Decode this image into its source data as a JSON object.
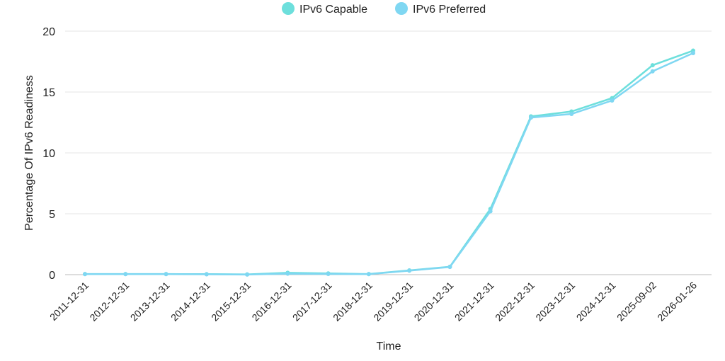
{
  "chart_data": {
    "type": "line",
    "title": "",
    "xlabel": "Time",
    "ylabel": "Percentage Of IPv6 Readiness",
    "categories": [
      "2011-12-31",
      "2012-12-31",
      "2013-12-31",
      "2014-12-31",
      "2015-12-31",
      "2016-12-31",
      "2017-12-31",
      "2018-12-31",
      "2019-12-31",
      "2020-12-31",
      "2021-12-31",
      "2022-12-31",
      "2023-12-31",
      "2024-12-31",
      "2025-09-02",
      "2026-01-26"
    ],
    "ylim": [
      0,
      20
    ],
    "yticks": [
      0,
      5,
      10,
      15,
      20
    ],
    "grid": true,
    "legend": "top-center",
    "series": [
      {
        "name": "IPv6 Capable",
        "color": "#6ddfdc",
        "values": [
          0.05,
          0.05,
          0.05,
          0.04,
          0.02,
          0.15,
          0.1,
          0.05,
          0.35,
          0.65,
          5.4,
          13.0,
          13.4,
          14.5,
          17.2,
          18.4
        ]
      },
      {
        "name": "IPv6 Preferred",
        "color": "#7fd7f2",
        "values": [
          0.04,
          0.04,
          0.04,
          0.03,
          0.01,
          0.08,
          0.06,
          0.04,
          0.33,
          0.63,
          5.2,
          12.9,
          13.2,
          14.3,
          16.7,
          18.2
        ]
      }
    ]
  }
}
